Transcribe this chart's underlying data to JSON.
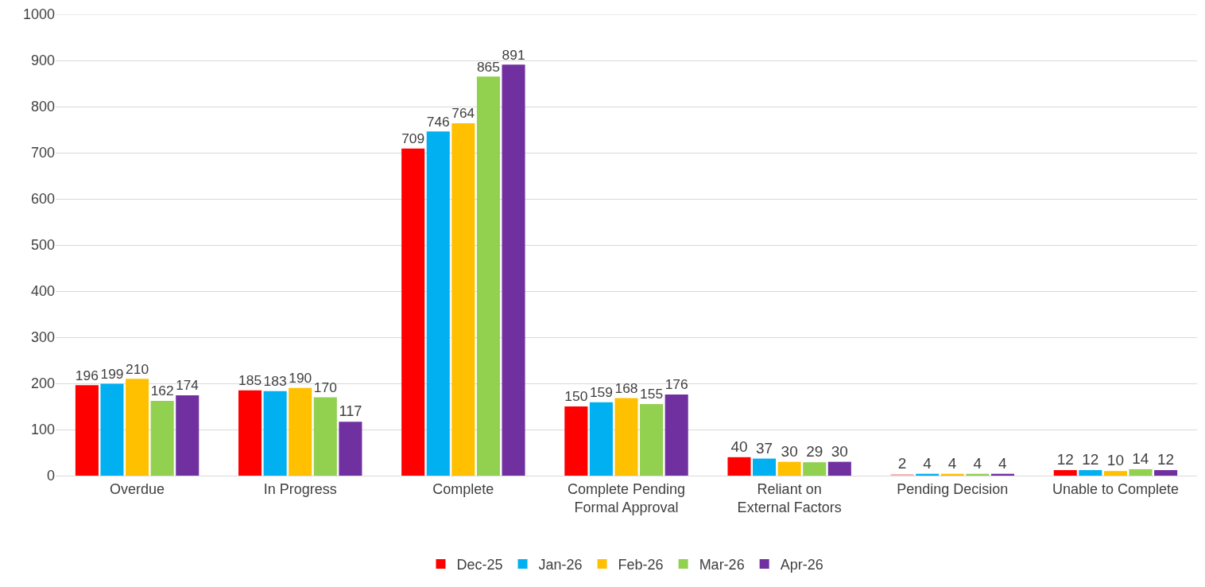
{
  "chart_data": {
    "type": "bar",
    "categories": [
      "Overdue",
      "In Progress",
      "Complete",
      "Complete Pending Formal Approval",
      "Reliant on External Factors",
      "Pending Decision",
      "Unable to Complete"
    ],
    "series": [
      {
        "name": "Dec-25",
        "color": "#ff0000",
        "colors": [
          null,
          null,
          null,
          null,
          null,
          "#f4b6b6",
          null
        ],
        "values": [
          196,
          185,
          709,
          150,
          40,
          2,
          12
        ]
      },
      {
        "name": "Jan-26",
        "color": "#00b0f0",
        "values": [
          199,
          183,
          746,
          159,
          37,
          4,
          12
        ]
      },
      {
        "name": "Feb-26",
        "color": "#ffc000",
        "values": [
          210,
          190,
          764,
          168,
          30,
          4,
          10
        ]
      },
      {
        "name": "Mar-26",
        "color": "#92d050",
        "values": [
          162,
          170,
          865,
          155,
          29,
          4,
          14
        ]
      },
      {
        "name": "Apr-26",
        "color": "#7030a0",
        "values": [
          174,
          117,
          891,
          176,
          30,
          4,
          12
        ]
      }
    ],
    "ylim": [
      0,
      1000
    ],
    "yticks": [
      0,
      100,
      200,
      300,
      400,
      500,
      600,
      700,
      800,
      900,
      1000
    ],
    "grid": "y",
    "legend": "bottom",
    "data_labels": true
  }
}
